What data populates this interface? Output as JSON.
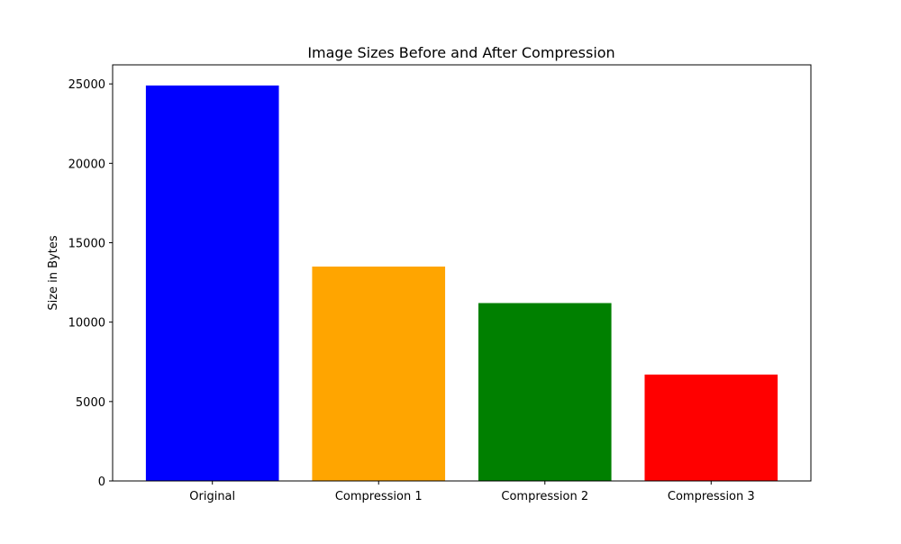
{
  "chart_data": {
    "type": "bar",
    "title": "Image Sizes Before and After Compression",
    "xlabel": "",
    "ylabel": "Size in Bytes",
    "categories": [
      "Original",
      "Compression 1",
      "Compression 2",
      "Compression 3"
    ],
    "values": [
      24900,
      13500,
      11200,
      6700
    ],
    "colors": [
      "#0000ff",
      "#ffa500",
      "#008000",
      "#ff0000"
    ],
    "ylim": [
      0,
      26200
    ],
    "yticks": [
      0,
      5000,
      10000,
      15000,
      20000,
      25000
    ],
    "grid": false,
    "legend": "none"
  }
}
